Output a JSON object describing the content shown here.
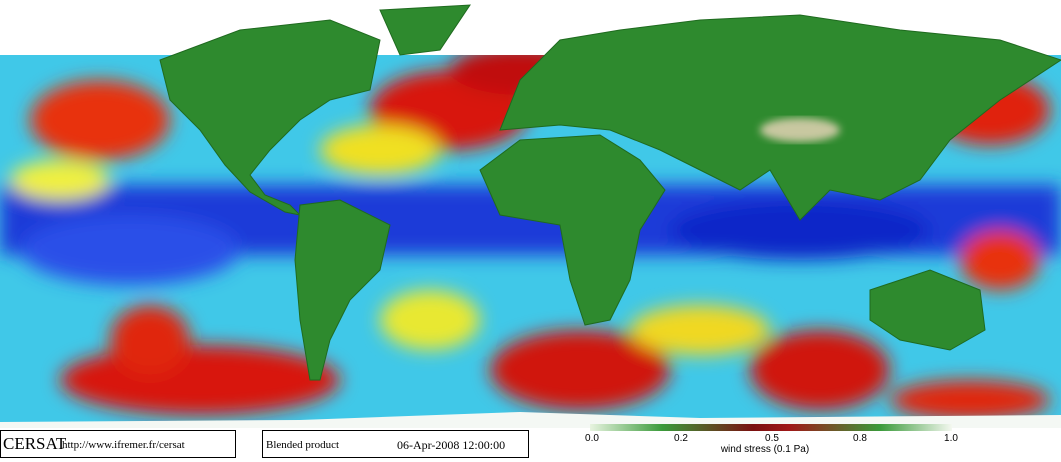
{
  "footer": {
    "logo": "CERSAT",
    "url": "http://www.ifremer.fr/cersat",
    "product": "Blended product",
    "date": "06-Apr-2008 12:00:00"
  },
  "colorbar": {
    "ticks": [
      "0.0",
      "0.2",
      "0.5",
      "0.8",
      "1.0"
    ],
    "label": "wind stress (0.1 Pa)"
  }
}
